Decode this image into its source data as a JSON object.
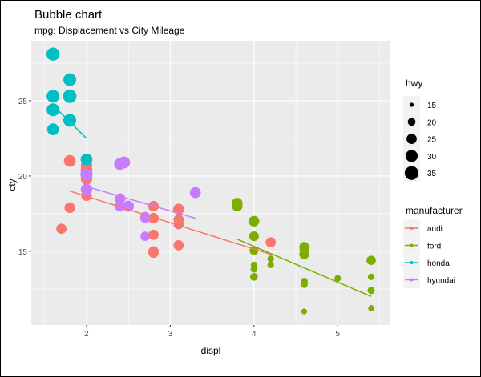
{
  "chart_data": {
    "type": "scatter",
    "title": "Bubble chart",
    "subtitle": "mpg: Displacement vs City Mileage",
    "xlabel": "displ",
    "ylabel": "cty",
    "xlim": [
      1.34,
      5.62
    ],
    "ylim": [
      10.1,
      30.05
    ],
    "xticks": [
      2,
      3,
      4,
      5
    ],
    "yticks": [
      15,
      20,
      25
    ],
    "grid": true,
    "size_legend": {
      "title": "hwy",
      "values": [
        15,
        20,
        25,
        30,
        35
      ]
    },
    "color_legend": {
      "title": "manufacturer",
      "position": "right"
    },
    "series": [
      {
        "name": "audi",
        "color": "#F8766D",
        "points": [
          [
            1.8,
            21,
            29
          ],
          [
            2.0,
            20.7,
            28
          ],
          [
            2.0,
            20.4,
            29
          ],
          [
            2.0,
            19.8,
            28
          ],
          [
            2.0,
            18.7,
            26
          ],
          [
            1.8,
            17.9,
            26
          ],
          [
            1.7,
            16.5,
            25
          ],
          [
            2.8,
            18,
            26
          ],
          [
            3.1,
            17.8,
            27
          ],
          [
            2.8,
            17.2,
            26
          ],
          [
            3.1,
            17.1,
            25
          ],
          [
            3.1,
            16.8,
            25
          ],
          [
            2.8,
            16.1,
            25
          ],
          [
            3.1,
            15.4,
            25
          ],
          [
            2.8,
            15,
            25
          ],
          [
            2.8,
            14.9,
            25
          ],
          [
            4.2,
            15.6,
            25
          ]
        ],
        "trend": [
          [
            1.8,
            19.0
          ],
          [
            4.2,
            14.8
          ]
        ]
      },
      {
        "name": "ford",
        "color": "#7CAE00",
        "points": [
          [
            3.8,
            18.2,
            26
          ],
          [
            3.8,
            18,
            26
          ],
          [
            4.0,
            17,
            26
          ],
          [
            4.0,
            16,
            24
          ],
          [
            4.0,
            15.05,
            22
          ],
          [
            4.0,
            14.1,
            18
          ],
          [
            4.0,
            13.8,
            18
          ],
          [
            4.0,
            13.3,
            20
          ],
          [
            4.2,
            14.5,
            18
          ],
          [
            4.2,
            14.1,
            18
          ],
          [
            4.6,
            15.3,
            24
          ],
          [
            4.6,
            14.8,
            24
          ],
          [
            4.6,
            15.1,
            23
          ],
          [
            4.6,
            13,
            19
          ],
          [
            4.6,
            12.8,
            19
          ],
          [
            4.6,
            11,
            17
          ],
          [
            5.0,
            13.2,
            18
          ],
          [
            5.4,
            14.4,
            23
          ],
          [
            5.4,
            13.3,
            18
          ],
          [
            5.4,
            12.4,
            19
          ],
          [
            5.4,
            11.2,
            17
          ],
          [
            5.4,
            11.3,
            15
          ]
        ],
        "trend": [
          [
            3.8,
            15.8
          ],
          [
            5.4,
            12.0
          ]
        ]
      },
      {
        "name": "honda",
        "color": "#00BFC4",
        "points": [
          [
            1.6,
            28.1,
            33
          ],
          [
            1.8,
            26.4,
            32
          ],
          [
            1.6,
            25.3,
            32
          ],
          [
            1.8,
            25.3,
            34
          ],
          [
            1.6,
            24.4,
            32
          ],
          [
            1.8,
            23.7,
            32
          ],
          [
            1.6,
            23.1,
            29
          ],
          [
            2.0,
            21.1,
            29
          ]
        ],
        "trend": [
          [
            1.6,
            24.7
          ],
          [
            2.0,
            22.5
          ]
        ]
      },
      {
        "name": "hyundai",
        "color": "#C77CFF",
        "points": [
          [
            2.4,
            20.8,
            29
          ],
          [
            2.45,
            20.9,
            29
          ],
          [
            2.0,
            20.1,
            30
          ],
          [
            2.0,
            19.1,
            28
          ],
          [
            2.4,
            18.5,
            26
          ],
          [
            2.4,
            18,
            26
          ],
          [
            2.5,
            18,
            27
          ],
          [
            2.7,
            17.3,
            24
          ],
          [
            2.7,
            17.2,
            24
          ],
          [
            2.7,
            16,
            23
          ],
          [
            3.3,
            18.9,
            27
          ]
        ],
        "trend": [
          [
            2.0,
            19.3
          ],
          [
            3.3,
            17.2
          ]
        ]
      }
    ]
  }
}
